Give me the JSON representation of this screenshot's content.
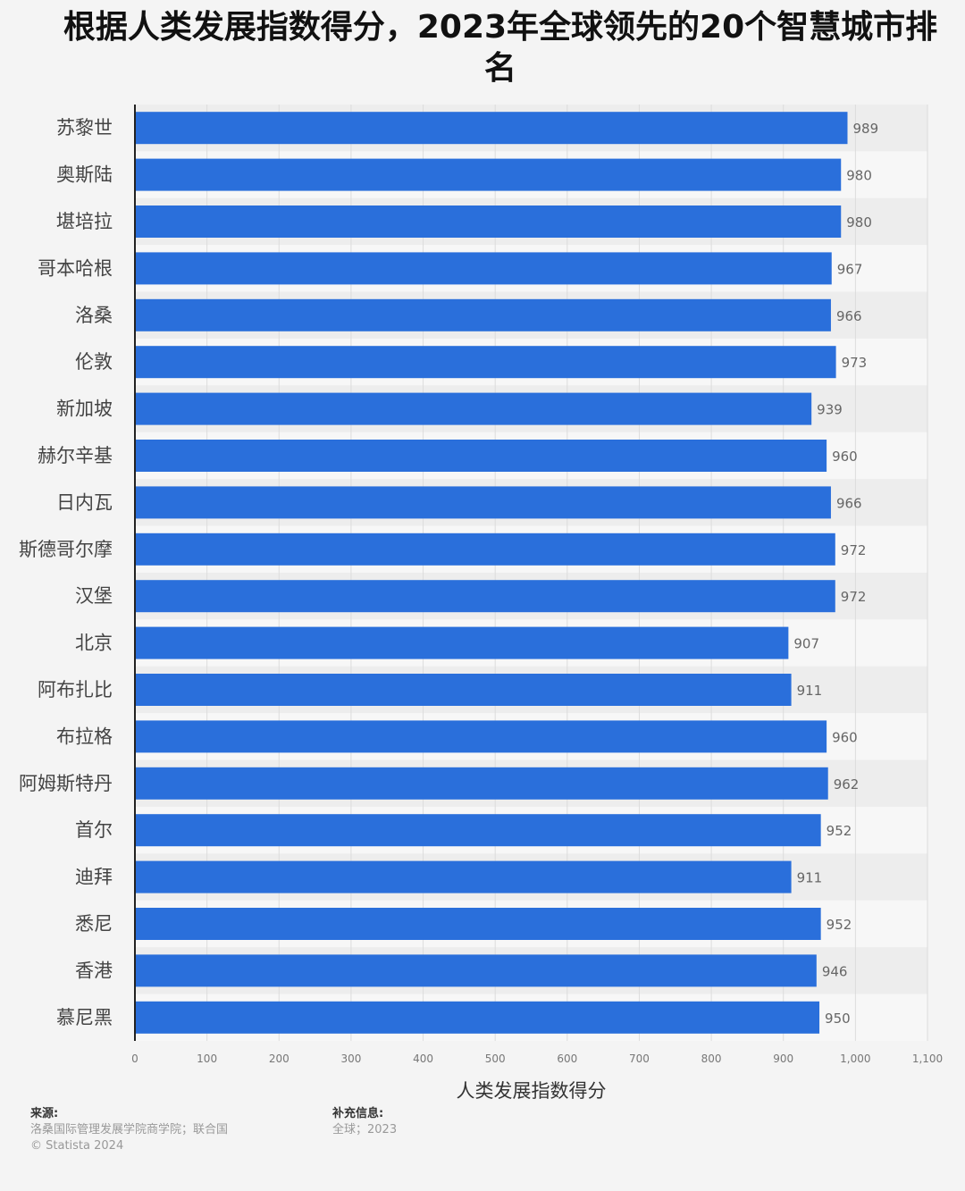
{
  "chart_data": {
    "type": "bar",
    "orientation": "horizontal",
    "title": "根据人类发展指数得分，2023年全球领先的20个智慧城市排名",
    "xlabel": "人类发展指数得分",
    "ylabel": "",
    "xlim": [
      0,
      1100
    ],
    "ticks": [
      0,
      100,
      200,
      300,
      400,
      500,
      600,
      700,
      800,
      900,
      1000,
      1100
    ],
    "tick_labels": [
      "0",
      "100",
      "200",
      "300",
      "400",
      "500",
      "600",
      "700",
      "800",
      "900",
      "1,000",
      "1,100"
    ],
    "categories": [
      "苏黎世",
      "奥斯陆",
      "堪培拉",
      "哥本哈根",
      "洛桑",
      "伦敦",
      "新加坡",
      "赫尔辛基",
      "日内瓦",
      "斯德哥尔摩",
      "汉堡",
      "北京",
      "阿布扎比",
      "布拉格",
      "阿姆斯特丹",
      "首尔",
      "迪拜",
      "悉尼",
      "香港",
      "慕尼黑"
    ],
    "values": [
      989,
      980,
      980,
      967,
      966,
      973,
      939,
      960,
      966,
      972,
      972,
      907,
      911,
      960,
      962,
      952,
      911,
      952,
      946,
      950
    ],
    "bar_color": "#2a6fdb",
    "grid": true
  },
  "footer": {
    "source_label": "来源:",
    "source_text": "洛桑国际管理发展学院商学院；联合国",
    "copyright": "© Statista 2024",
    "info_label": "补充信息:",
    "info_text": "全球；2023"
  }
}
